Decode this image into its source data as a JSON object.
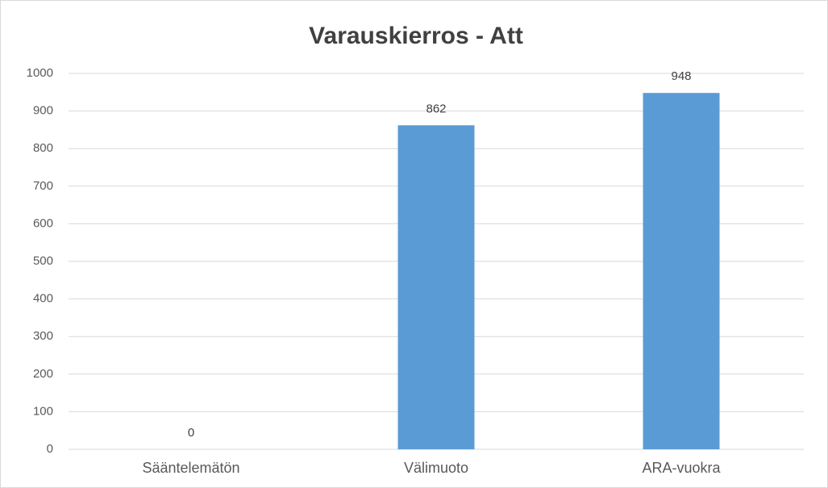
{
  "chart_data": {
    "type": "bar",
    "title": "Varauskierros - Att",
    "categories": [
      "Sääntelemätön",
      "Välimuoto",
      "ARA-vuokra"
    ],
    "values": [
      0,
      862,
      948
    ],
    "color": "#5b9bd5",
    "ylim": [
      0,
      1000
    ],
    "yticks": [
      0,
      100,
      200,
      300,
      400,
      500,
      600,
      700,
      800,
      900,
      1000
    ],
    "grid": true
  }
}
